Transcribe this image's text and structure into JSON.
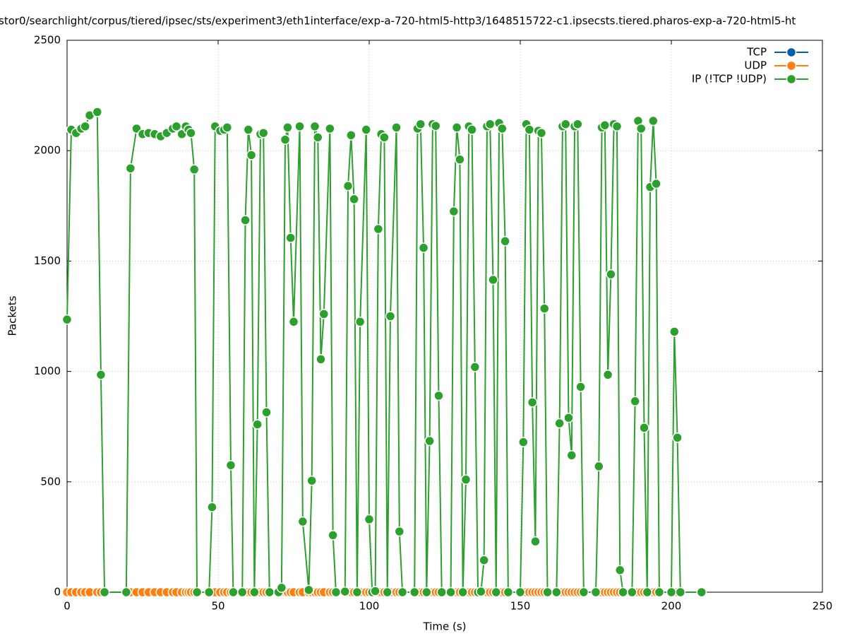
{
  "chart_data": {
    "type": "line",
    "title": "stor0/searchlight/corpus/tiered/ipsec/sts/experiment3/eth1interface/exp-a-720-html5-http3/1648515722-c1.ipsecsts.tiered.pharos-exp-a-720-html5-ht",
    "x_label": "Time (s)",
    "y_label": "Packets",
    "xlim": [
      0,
      250
    ],
    "xticks": [
      0,
      50,
      100,
      150,
      200,
      250
    ],
    "ylim": [
      0,
      2500
    ],
    "yticks": [
      0,
      500,
      1000,
      1500,
      2000,
      2500
    ],
    "grid": true,
    "legend": "top-right",
    "x": [
      0,
      1.4,
      3,
      4.7,
      6,
      7.5,
      10,
      11.2,
      12.4,
      19.6,
      21,
      23,
      25,
      27,
      29,
      31,
      33,
      35,
      36.2,
      38,
      39.3,
      40.2,
      41,
      42.1,
      43,
      47,
      48,
      49,
      50.7,
      52,
      53,
      54.2,
      55,
      58,
      59,
      60,
      61,
      62,
      63,
      64,
      65,
      66,
      67,
      70,
      71,
      72.2,
      73,
      74,
      75,
      77,
      78,
      80,
      81,
      82,
      83,
      84,
      85,
      87,
      88,
      89,
      92,
      93,
      94,
      95,
      96,
      97,
      99,
      100,
      101,
      102,
      103,
      104,
      105,
      106,
      107,
      109,
      110,
      111,
      115,
      116,
      117,
      118,
      119,
      120,
      121,
      122,
      123,
      124,
      127,
      128,
      129,
      130,
      131,
      132,
      133,
      134,
      135,
      136,
      137,
      138,
      139,
      140,
      141,
      142,
      143,
      144,
      145,
      146,
      150,
      151,
      152,
      153,
      154,
      155,
      156,
      157,
      158,
      159,
      162,
      163,
      164,
      165,
      166,
      167,
      168,
      169,
      170,
      171,
      175,
      176,
      177,
      178,
      179,
      180,
      181,
      182,
      183,
      184,
      187,
      188,
      189,
      190,
      191,
      192,
      193,
      194,
      195,
      196,
      200,
      201,
      202,
      203,
      210
    ],
    "series": [
      {
        "name": "TCP",
        "color": "#0060ad",
        "values": [
          0,
          0,
          0,
          0,
          0,
          0,
          0,
          0,
          0,
          0,
          0,
          0,
          0,
          0,
          0,
          0,
          0,
          0,
          0,
          0,
          0,
          0,
          0,
          0,
          0,
          0,
          0,
          0,
          0,
          0,
          0,
          0,
          0,
          0,
          0,
          0,
          0,
          0,
          0,
          0,
          0,
          0,
          0,
          0,
          0,
          0,
          0,
          0,
          0,
          0,
          0,
          0,
          0,
          0,
          0,
          0,
          0,
          0,
          0,
          0,
          0,
          0,
          0,
          0,
          0,
          0,
          0,
          0,
          0,
          0,
          0,
          0,
          0,
          0,
          0,
          0,
          0,
          0,
          0,
          0,
          0,
          0,
          0,
          0,
          0,
          0,
          0,
          0,
          0,
          0,
          0,
          0,
          0,
          0,
          0,
          0,
          0,
          0,
          0,
          0,
          0,
          0,
          0,
          0,
          0,
          0,
          0,
          0,
          0,
          0,
          0,
          0,
          0,
          0,
          0,
          0,
          0,
          0,
          0,
          0,
          0,
          0,
          0,
          0,
          0,
          0,
          0,
          0,
          0,
          0,
          0,
          0,
          0,
          0,
          0,
          0,
          0,
          0,
          0,
          0,
          0,
          0,
          0,
          0,
          0,
          0,
          0,
          0,
          0,
          0,
          0,
          0,
          0
        ]
      },
      {
        "name": "UDP",
        "color": "#ff7f0e",
        "values": [
          0,
          0,
          0,
          0,
          0,
          0,
          0,
          0,
          0,
          0,
          0,
          0,
          0,
          0,
          0,
          0,
          0,
          0,
          0,
          0,
          0,
          0,
          0,
          0,
          0,
          0,
          0,
          0,
          0,
          0,
          0,
          0,
          0,
          0,
          0,
          0,
          0,
          0,
          0,
          0,
          0,
          0,
          0,
          0,
          0,
          0,
          0,
          0,
          0,
          0,
          0,
          0,
          0,
          0,
          0,
          0,
          0,
          0,
          0,
          0,
          0,
          0,
          0,
          0,
          0,
          0,
          0,
          0,
          0,
          0,
          0,
          0,
          0,
          0,
          0,
          0,
          0,
          0,
          0,
          0,
          0,
          0,
          0,
          0,
          0,
          0,
          0,
          0,
          0,
          0,
          0,
          0,
          0,
          0,
          0,
          0,
          0,
          0,
          0,
          0,
          0,
          0,
          0,
          0,
          0,
          0,
          0,
          0,
          0,
          0,
          0,
          0,
          0,
          0,
          0,
          0,
          0,
          0,
          0,
          0,
          0,
          0,
          0,
          0,
          0,
          0,
          0,
          0,
          0,
          0,
          0,
          0,
          0,
          0,
          0,
          0,
          0,
          0,
          0,
          0,
          0,
          0,
          0,
          0,
          0,
          0,
          0,
          0,
          0,
          0,
          0,
          0,
          0
        ]
      },
      {
        "name": "IP (!TCP  !UDP)",
        "color": "#2ca02c",
        "values": [
          1235,
          2095,
          2080,
          2100,
          2110,
          2160,
          2175,
          985,
          0,
          0,
          1920,
          2100,
          2075,
          2080,
          2075,
          2065,
          2080,
          2100,
          2110,
          2075,
          2110,
          2095,
          2080,
          1915,
          0,
          0,
          385,
          2110,
          2090,
          2095,
          2105,
          575,
          0,
          0,
          1685,
          2095,
          1980,
          0,
          760,
          2075,
          2080,
          815,
          0,
          0,
          20,
          2050,
          2105,
          1605,
          1225,
          2110,
          320,
          10,
          505,
          2110,
          2060,
          1055,
          1260,
          2100,
          258,
          0,
          3,
          1840,
          2070,
          1780,
          0,
          1225,
          2095,
          330,
          0,
          5,
          1645,
          2075,
          2060,
          0,
          1250,
          2105,
          275,
          0,
          0,
          2100,
          2120,
          1560,
          0,
          685,
          2120,
          2112,
          890,
          0,
          0,
          1725,
          2105,
          1960,
          0,
          510,
          2110,
          2095,
          1020,
          0,
          3,
          145,
          2110,
          2120,
          1415,
          0,
          2125,
          2100,
          1590,
          0,
          0,
          680,
          2120,
          2095,
          860,
          230,
          2090,
          2080,
          1285,
          0,
          0,
          765,
          2110,
          2120,
          790,
          620,
          2110,
          2120,
          930,
          0,
          0,
          570,
          2105,
          2115,
          985,
          1440,
          2120,
          2110,
          100,
          0,
          0,
          865,
          2135,
          2100,
          745,
          0,
          1835,
          2135,
          1850,
          0,
          0,
          1180,
          700,
          0,
          0
        ]
      }
    ]
  }
}
